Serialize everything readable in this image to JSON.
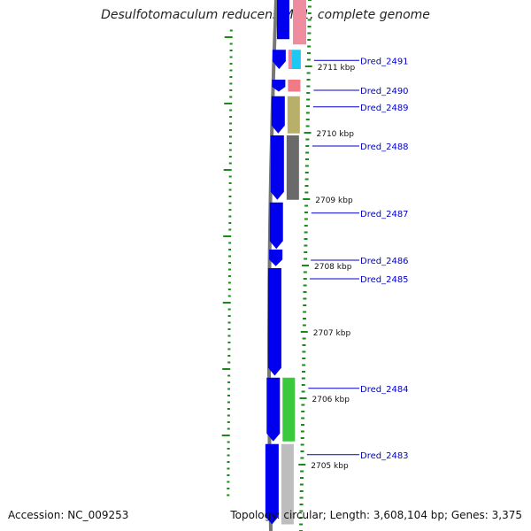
{
  "title": "Desulfotomaculum reducens MI-1, complete genome",
  "footer": {
    "accession": "Accession: NC_009253",
    "summary": "Topology: circular; Length: 3,608,104 bp; Genes: 3,375"
  },
  "kbp_labels": [
    {
      "label": "2711 kbp",
      "pos": 2711.0
    },
    {
      "label": "2710 kbp",
      "pos": 2710.0
    },
    {
      "label": "2709 kbp",
      "pos": 2709.0
    },
    {
      "label": "2708 kbp",
      "pos": 2708.0
    },
    {
      "label": "2707 kbp",
      "pos": 2707.0
    },
    {
      "label": "2706 kbp",
      "pos": 2706.0
    },
    {
      "label": "2705 kbp",
      "pos": 2705.0
    }
  ],
  "genes": [
    {
      "name": "Dred_2491",
      "start": 2710.96,
      "end": 2711.25,
      "color": "#1ec8f0",
      "color2": "#f08ca0"
    },
    {
      "name": "Dred_2490",
      "start": 2710.62,
      "end": 2710.8,
      "color": "#f07a86"
    },
    {
      "name": "Dred_2489",
      "start": 2709.99,
      "end": 2710.55,
      "color": "#b8b06a"
    },
    {
      "name": "Dred_2488",
      "start": 2708.99,
      "end": 2709.96,
      "color": "#6a6a6a"
    },
    {
      "name": "Dred_2487",
      "start": 2708.25,
      "end": 2708.95,
      "color": ""
    },
    {
      "name": "Dred_2486",
      "start": 2707.99,
      "end": 2708.24,
      "color": ""
    },
    {
      "name": "Dred_2485",
      "start": 2706.34,
      "end": 2707.96,
      "color": ""
    },
    {
      "name": "Dred_2484",
      "start": 2705.35,
      "end": 2706.31,
      "color": "#3cc83c"
    },
    {
      "name": "Dred_2483",
      "start": 2704.1,
      "end": 2705.31,
      "color": "#bdbdbd"
    }
  ],
  "top_gene": {
    "start": 2711.33,
    "end": 2712.1,
    "color": "#f08ca0"
  },
  "colors": {
    "cds": "#0000ee",
    "backbone": "#777777",
    "tick_green": "#1a8a1a",
    "label_line": "#0000cc",
    "label_text": "#0000cc"
  }
}
